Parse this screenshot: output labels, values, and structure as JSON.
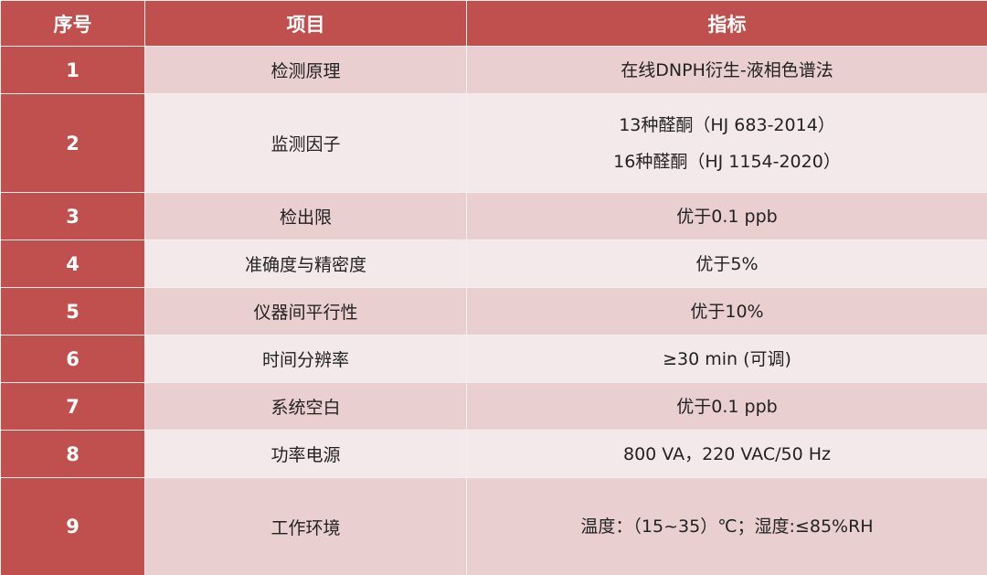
{
  "colors": {
    "header": "#c0504d",
    "row_pink": "#e9cfd0",
    "row_light": "#f4e9ea"
  },
  "headers": [
    "序号",
    "项目",
    "指标"
  ],
  "rows": [
    {
      "no": "1",
      "item": "检测原理",
      "spec": [
        "在线DNPH衍生-液相色谱法"
      ]
    },
    {
      "no": "2",
      "item": "监测因子",
      "spec": [
        "13种醛酮（HJ 683-2014）",
        "16种醛酮（HJ 1154-2020）"
      ]
    },
    {
      "no": "3",
      "item": "检出限",
      "spec": [
        "优于0.1 ppb"
      ]
    },
    {
      "no": "4",
      "item": "准确度与精密度",
      "spec": [
        "优于5%"
      ]
    },
    {
      "no": "5",
      "item": "仪器间平行性",
      "spec": [
        "优于10%"
      ]
    },
    {
      "no": "6",
      "item": "时间分辨率",
      "spec": [
        "≥30 min (可调)"
      ]
    },
    {
      "no": "7",
      "item": "系统空白",
      "spec": [
        "优于0.1 ppb"
      ]
    },
    {
      "no": "8",
      "item": "功率电源",
      "spec": [
        "800 VA，220 VAC/50 Hz"
      ]
    },
    {
      "no": "9",
      "item": "工作环境",
      "spec": [
        "温度：（15~35）℃；湿度:≤85%RH"
      ]
    }
  ]
}
